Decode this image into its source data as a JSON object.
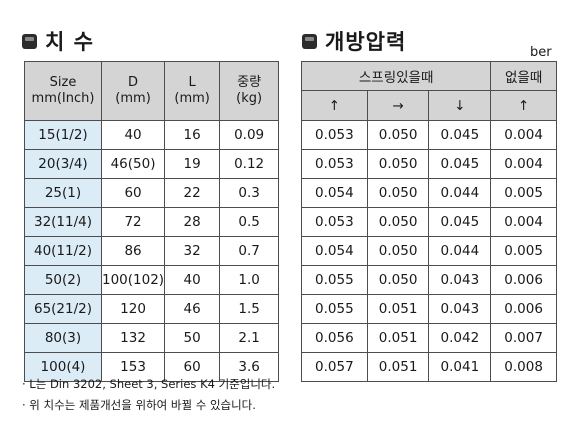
{
  "left_heading": "치 수",
  "right_heading": "개방압력",
  "unit_label": "ber",
  "dimension_table": {
    "headers": {
      "size": "Size",
      "size_unit": "mm(Inch)",
      "d": "D",
      "d_unit": "(mm)",
      "l": "L",
      "l_unit": "(mm)",
      "weight": "중량",
      "weight_unit": "(kg)"
    },
    "rows": [
      {
        "size": "15(1/2)",
        "d": "40",
        "l": "16",
        "weight": "0.09"
      },
      {
        "size": "20(3/4)",
        "d": "46(50)",
        "l": "19",
        "weight": "0.12"
      },
      {
        "size": "25(1)",
        "d": "60",
        "l": "22",
        "weight": "0.3"
      },
      {
        "size": "32(11/4)",
        "d": "72",
        "l": "28",
        "weight": "0.5"
      },
      {
        "size": "40(11/2)",
        "d": "86",
        "l": "32",
        "weight": "0.7"
      },
      {
        "size": "50(2)",
        "d": "100(102)",
        "l": "40",
        "weight": "1.0"
      },
      {
        "size": "65(21/2)",
        "d": "120",
        "l": "46",
        "weight": "1.5"
      },
      {
        "size": "80(3)",
        "d": "132",
        "l": "50",
        "weight": "2.1"
      },
      {
        "size": "100(4)",
        "d": "153",
        "l": "60",
        "weight": "3.6"
      }
    ]
  },
  "pressure_table": {
    "headers": {
      "with_spring": "스프링있을때",
      "without_spring": "없을때",
      "dir_up_1": "↑",
      "dir_right": "→",
      "dir_down": "↓",
      "dir_up_2": "↑"
    },
    "rows": [
      {
        "up": "0.053",
        "horizontal": "0.050",
        "down": "0.045",
        "no_spring": "0.004"
      },
      {
        "up": "0.053",
        "horizontal": "0.050",
        "down": "0.045",
        "no_spring": "0.004"
      },
      {
        "up": "0.054",
        "horizontal": "0.050",
        "down": "0.044",
        "no_spring": "0.005"
      },
      {
        "up": "0.053",
        "horizontal": "0.050",
        "down": "0.045",
        "no_spring": "0.004"
      },
      {
        "up": "0.054",
        "horizontal": "0.050",
        "down": "0.044",
        "no_spring": "0.005"
      },
      {
        "up": "0.055",
        "horizontal": "0.050",
        "down": "0.043",
        "no_spring": "0.006"
      },
      {
        "up": "0.055",
        "horizontal": "0.051",
        "down": "0.043",
        "no_spring": "0.006"
      },
      {
        "up": "0.056",
        "horizontal": "0.051",
        "down": "0.042",
        "no_spring": "0.007"
      },
      {
        "up": "0.057",
        "horizontal": "0.051",
        "down": "0.041",
        "no_spring": "0.008"
      }
    ]
  },
  "notes": [
    "· L는 Din 3202, Sheet 3, Series K4 기준입니다.",
    "· 위 치수는 제품개선을 위하여 바뀔 수 있습니다."
  ]
}
